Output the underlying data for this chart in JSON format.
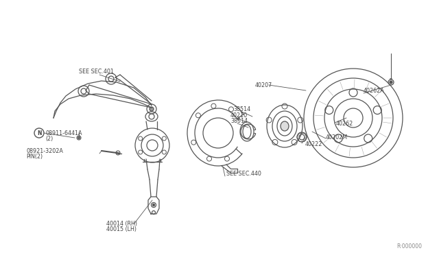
{
  "bg_color": "#ffffff",
  "line_color": "#555555",
  "text_color": "#444444",
  "fig_width": 6.4,
  "fig_height": 3.72,
  "watermark": "R·000000",
  "parts": {
    "knuckle_label1": "40014 (RH)",
    "knuckle_label2": "40015 (LH)",
    "pin_label1": "08921-3202A",
    "pin_label2": "PIN(2)",
    "nut_label1": "08911-6441A",
    "nut_label2": "(2)",
    "sec440": "SEE SEC.440",
    "sec401": "SEE SEC.401",
    "label_40222": "40222",
    "label_40202M": "40202M",
    "label_40262": "40262",
    "label_40262A": "40262A",
    "label_38514a": "38514",
    "label_40210": "40210",
    "label_38514b": "38514",
    "label_40207": "40207"
  }
}
